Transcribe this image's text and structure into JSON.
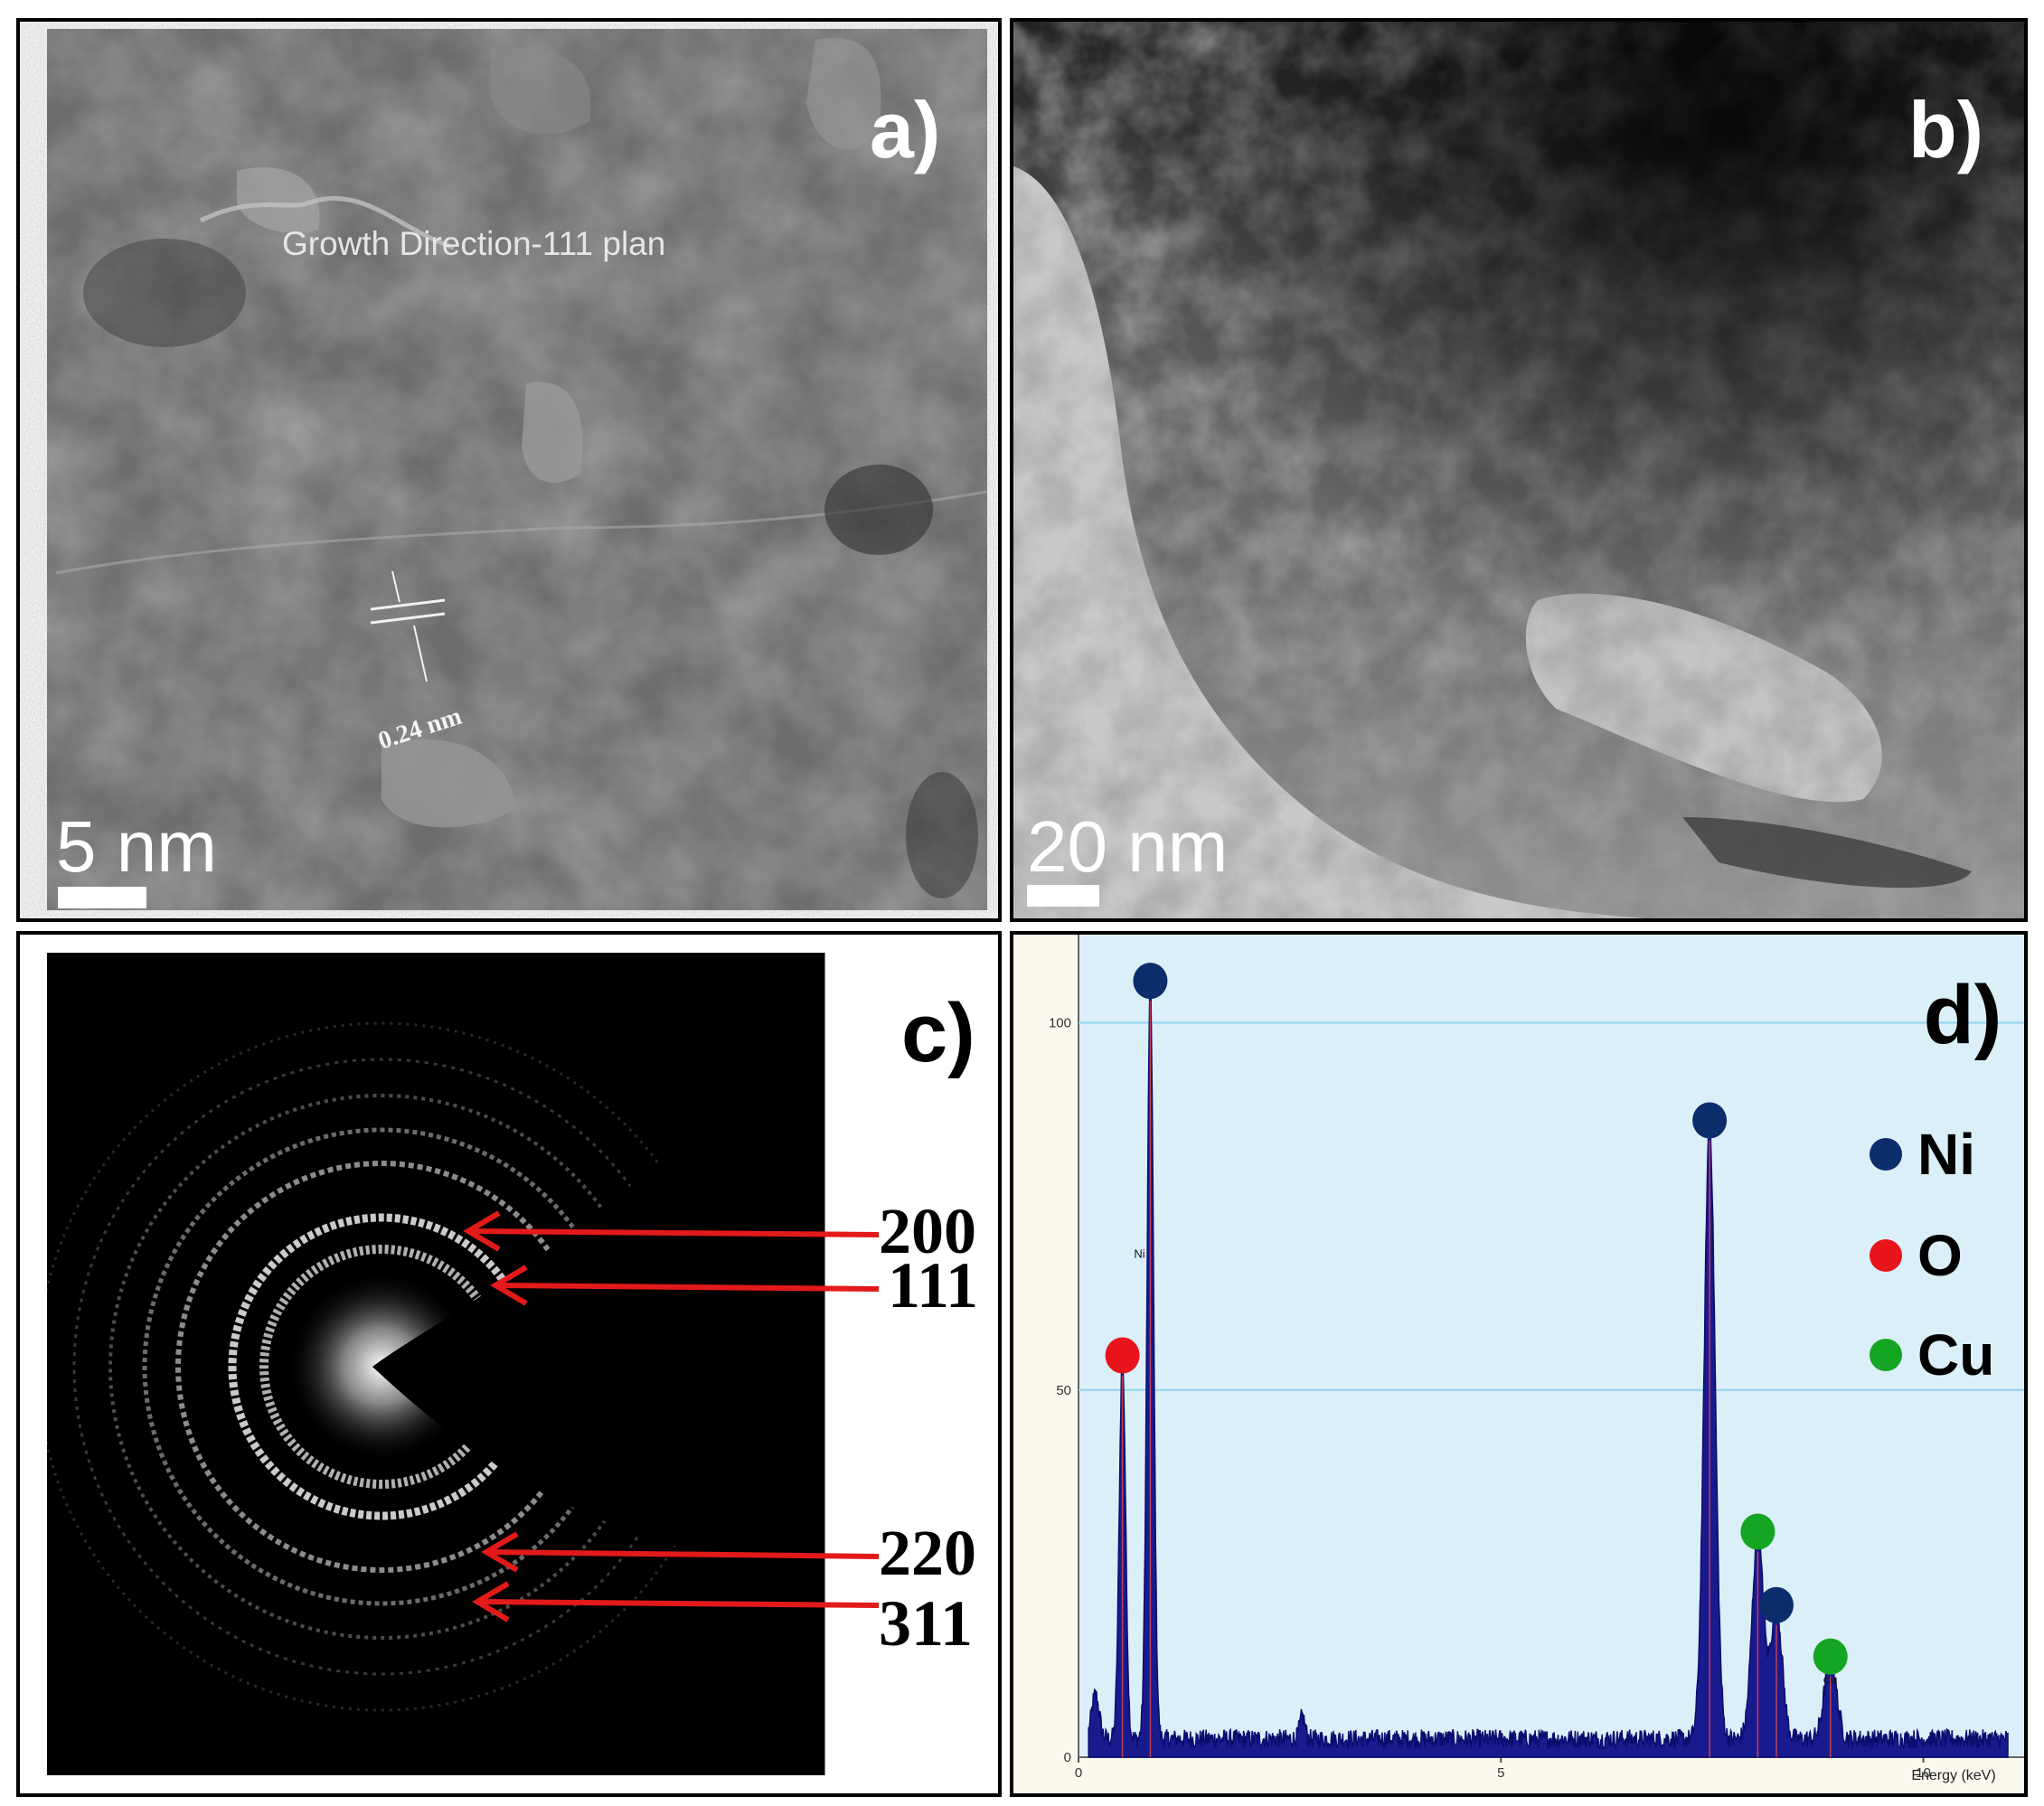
{
  "panels": {
    "a": {
      "label": "a)",
      "annotation": "Growth Direction-111 plan",
      "spacing": "0.24 nm",
      "scale_bar": "5 nm"
    },
    "b": {
      "label": "b)",
      "scale_bar": "20 nm"
    },
    "c": {
      "label": "c)",
      "rings": [
        "200",
        "111",
        "220",
        "311"
      ]
    },
    "d": {
      "label": "d)",
      "legend": [
        {
          "name": "Ni",
          "color": "#0b2d6b"
        },
        {
          "name": "O",
          "color": "#e8141b"
        },
        {
          "name": "Cu",
          "color": "#14a523"
        }
      ],
      "peak_label_ni": "Ni",
      "peak_label_cu": "Cu"
    }
  },
  "chart_data": {
    "type": "area",
    "xlabel": "Energy (keV)",
    "ylabel": "",
    "xlim": [
      0,
      11
    ],
    "ylim": [
      0,
      112
    ],
    "x_ticks": [
      "0",
      "5",
      "10"
    ],
    "y_ticks": [
      "0",
      "50",
      "100"
    ],
    "grid": true,
    "legend": "right",
    "peaks": [
      {
        "element": "O",
        "energy": 0.52,
        "height": 52,
        "marker": "O"
      },
      {
        "element": "Ni",
        "energy": 0.85,
        "height": 103,
        "marker": "Ni"
      },
      {
        "element": "Ni",
        "energy": 7.47,
        "height": 84,
        "marker": "Ni"
      },
      {
        "element": "Cu",
        "energy": 8.04,
        "height": 28,
        "marker": "Cu"
      },
      {
        "element": "Ni",
        "energy": 8.26,
        "height": 18,
        "marker": "Ni"
      },
      {
        "element": "Cu",
        "energy": 8.9,
        "height": 11,
        "marker": "Cu"
      }
    ]
  }
}
